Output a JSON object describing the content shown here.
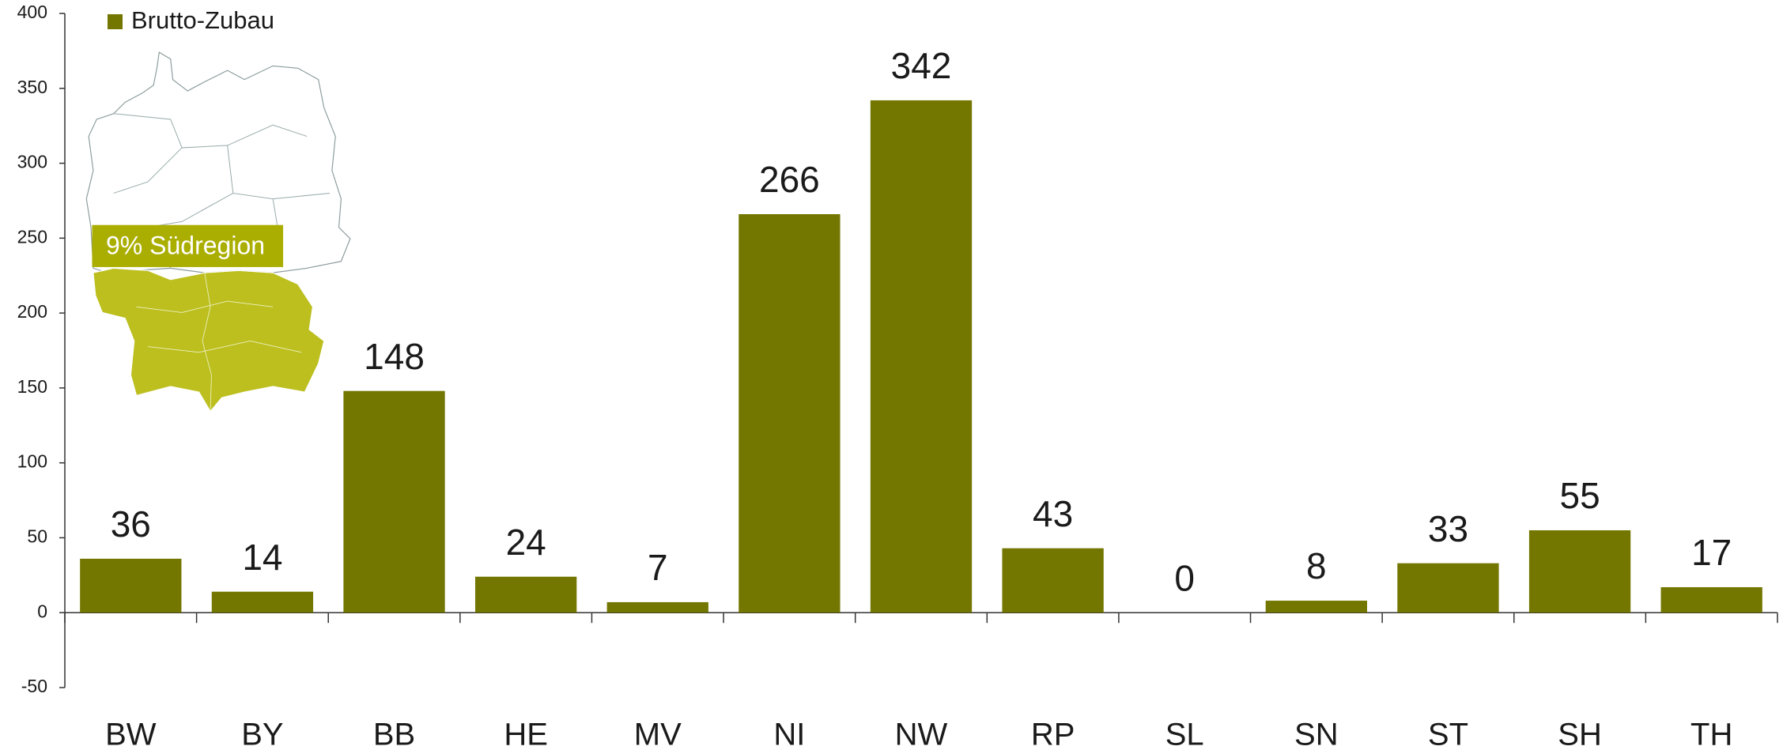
{
  "chart_data": {
    "type": "bar",
    "categories": [
      "BW",
      "BY",
      "BB",
      "HE",
      "MV",
      "NI",
      "NW",
      "RP",
      "SL",
      "SN",
      "ST",
      "SH",
      "TH"
    ],
    "series": [
      {
        "name": "Brutto-Zubau",
        "color": "#737700",
        "values": [
          36,
          14,
          148,
          24,
          7,
          266,
          342,
          43,
          0,
          8,
          33,
          55,
          17
        ]
      }
    ],
    "ylim": [
      -50,
      400
    ],
    "yticks": [
      -50,
      0,
      50,
      100,
      150,
      200,
      250,
      300,
      350,
      400
    ],
    "legend": "top-left",
    "annotations": [
      "9% Südregion"
    ]
  }
}
